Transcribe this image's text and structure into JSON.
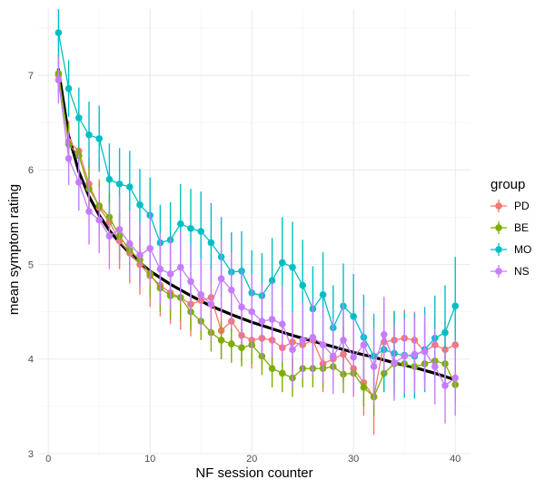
{
  "chart_data": {
    "type": "line",
    "xlabel": "NF session counter",
    "ylabel": "mean symptom rating",
    "xlim": [
      -1,
      41.5
    ],
    "ylim": [
      3,
      7.7
    ],
    "x_ticks": [
      0,
      10,
      20,
      30,
      40
    ],
    "y_ticks": [
      3,
      4,
      5,
      6,
      7
    ],
    "grid": true,
    "legend": {
      "title": "group",
      "position": "right",
      "entries": [
        "PD",
        "BE",
        "MO",
        "NS"
      ]
    },
    "series": [
      {
        "name": "PD",
        "color": "#F8766D",
        "x": [
          1,
          2,
          3,
          4,
          5,
          6,
          7,
          8,
          9,
          10,
          11,
          12,
          13,
          14,
          15,
          16,
          17,
          18,
          19,
          20,
          21,
          22,
          23,
          24,
          25,
          26,
          27,
          28,
          29,
          30,
          31,
          32,
          33,
          34,
          35,
          36,
          37,
          38,
          39,
          40
        ],
        "y": [
          7.0,
          6.3,
          6.2,
          5.85,
          5.6,
          5.45,
          5.25,
          5.12,
          5.0,
          4.88,
          4.78,
          4.7,
          4.65,
          4.58,
          4.62,
          4.65,
          4.3,
          4.4,
          4.25,
          4.2,
          4.22,
          4.2,
          4.12,
          4.18,
          4.15,
          4.2,
          3.95,
          4.0,
          4.05,
          3.9,
          3.75,
          3.6,
          4.18,
          4.2,
          4.22,
          4.2,
          4.08,
          4.15,
          4.1,
          4.15
        ],
        "err": [
          0.2,
          0.22,
          0.25,
          0.28,
          0.3,
          0.3,
          0.3,
          0.32,
          0.32,
          0.33,
          0.33,
          0.33,
          0.34,
          0.34,
          0.34,
          0.35,
          0.3,
          0.3,
          0.3,
          0.3,
          0.3,
          0.3,
          0.3,
          0.3,
          0.3,
          0.3,
          0.3,
          0.3,
          0.3,
          0.3,
          0.35,
          0.4,
          0.3,
          0.3,
          0.3,
          0.3,
          0.3,
          0.3,
          0.3,
          0.3
        ]
      },
      {
        "name": "BE",
        "color": "#7CAE00",
        "x": [
          1,
          2,
          3,
          4,
          5,
          6,
          7,
          8,
          9,
          10,
          11,
          12,
          13,
          14,
          15,
          16,
          17,
          18,
          19,
          20,
          21,
          22,
          23,
          24,
          25,
          26,
          27,
          28,
          29,
          30,
          31,
          32,
          33,
          34,
          35,
          36,
          37,
          38,
          39,
          40
        ],
        "y": [
          7.02,
          6.27,
          6.15,
          5.8,
          5.62,
          5.5,
          5.3,
          5.15,
          5.05,
          4.9,
          4.75,
          4.67,
          4.65,
          4.5,
          4.4,
          4.28,
          4.2,
          4.16,
          4.12,
          4.15,
          4.03,
          3.9,
          3.85,
          3.8,
          3.9,
          3.9,
          3.9,
          3.92,
          3.84,
          3.85,
          3.7,
          3.6,
          3.85,
          3.95,
          3.95,
          3.92,
          3.95,
          3.98,
          3.95,
          3.73
        ],
        "err": [
          0.2,
          0.22,
          0.22,
          0.25,
          0.25,
          0.25,
          0.25,
          0.25,
          0.25,
          0.25,
          0.25,
          0.25,
          0.25,
          0.2,
          0.2,
          0.2,
          0.2,
          0.2,
          0.2,
          0.2,
          0.2,
          0.2,
          0.2,
          0.2,
          0.2,
          0.2,
          0.2,
          0.2,
          0.2,
          0.2,
          0.2,
          0.2,
          0.2,
          0.2,
          0.2,
          0.2,
          0.2,
          0.2,
          0.2,
          0.2
        ]
      },
      {
        "name": "MO",
        "color": "#00BFC4",
        "x": [
          1,
          2,
          3,
          4,
          5,
          6,
          7,
          8,
          9,
          10,
          11,
          12,
          13,
          14,
          15,
          16,
          17,
          18,
          19,
          20,
          21,
          22,
          23,
          24,
          25,
          26,
          27,
          28,
          29,
          30,
          31,
          32,
          33,
          34,
          35,
          36,
          37,
          38,
          39,
          40
        ],
        "y": [
          7.45,
          6.86,
          6.55,
          6.37,
          6.33,
          5.9,
          5.85,
          5.82,
          5.63,
          5.52,
          5.23,
          5.26,
          5.43,
          5.38,
          5.35,
          5.23,
          5.08,
          4.92,
          4.93,
          4.7,
          4.67,
          4.83,
          5.02,
          4.97,
          4.78,
          4.53,
          4.68,
          4.33,
          4.56,
          4.45,
          4.23,
          4.03,
          4.1,
          4.06,
          4.04,
          4.03,
          4.1,
          4.22,
          4.28,
          4.56
        ],
        "err": [
          0.25,
          0.3,
          0.32,
          0.35,
          0.35,
          0.38,
          0.38,
          0.38,
          0.38,
          0.4,
          0.4,
          0.4,
          0.42,
          0.42,
          0.42,
          0.42,
          0.42,
          0.42,
          0.42,
          0.45,
          0.45,
          0.45,
          0.48,
          0.48,
          0.48,
          0.45,
          0.45,
          0.45,
          0.45,
          0.45,
          0.45,
          0.45,
          0.45,
          0.45,
          0.45,
          0.45,
          0.45,
          0.45,
          0.5,
          0.52
        ]
      },
      {
        "name": "NS",
        "color": "#C77CFF",
        "x": [
          1,
          2,
          3,
          4,
          5,
          6,
          7,
          8,
          9,
          10,
          11,
          12,
          13,
          14,
          15,
          16,
          17,
          18,
          19,
          20,
          21,
          22,
          23,
          24,
          25,
          26,
          27,
          28,
          29,
          30,
          31,
          32,
          33,
          34,
          35,
          36,
          37,
          38,
          39,
          40
        ],
        "y": [
          6.95,
          6.12,
          5.87,
          5.56,
          5.47,
          5.3,
          5.37,
          5.22,
          5.1,
          5.17,
          4.95,
          4.9,
          4.97,
          4.82,
          4.68,
          4.58,
          4.85,
          4.73,
          4.55,
          4.5,
          4.4,
          4.42,
          4.37,
          4.1,
          4.2,
          4.23,
          4.15,
          4.03,
          4.2,
          4.02,
          4.15,
          3.92,
          4.26,
          3.96,
          4.03,
          4.05,
          4.08,
          3.92,
          3.72,
          3.8
        ],
        "err": [
          0.25,
          0.28,
          0.3,
          0.35,
          0.35,
          0.35,
          0.35,
          0.35,
          0.35,
          0.38,
          0.38,
          0.38,
          0.38,
          0.38,
          0.38,
          0.38,
          0.4,
          0.4,
          0.4,
          0.4,
          0.4,
          0.4,
          0.4,
          0.4,
          0.4,
          0.4,
          0.4,
          0.4,
          0.4,
          0.4,
          0.4,
          0.4,
          0.4,
          0.4,
          0.4,
          0.4,
          0.4,
          0.4,
          0.4,
          0.4
        ]
      }
    ],
    "trend": {
      "color": "#000000",
      "x": [
        1,
        2,
        3,
        4,
        5,
        6,
        7,
        8,
        9,
        10,
        12,
        14,
        16,
        18,
        20,
        22,
        24,
        26,
        28,
        30,
        32,
        34,
        36,
        38,
        40
      ],
      "y": [
        7.06,
        6.36,
        5.98,
        5.72,
        5.52,
        5.36,
        5.23,
        5.12,
        5.02,
        4.93,
        4.79,
        4.67,
        4.56,
        4.47,
        4.39,
        4.32,
        4.25,
        4.19,
        4.13,
        4.07,
        4.02,
        3.96,
        3.91,
        3.85,
        3.78
      ]
    }
  }
}
